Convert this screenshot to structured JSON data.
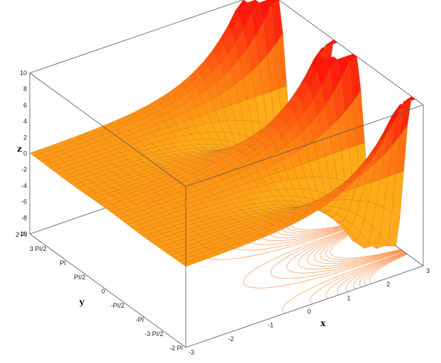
{
  "chart_data": {
    "type": "surface-3d",
    "xlabel": "x",
    "ylabel": "y",
    "zlabel": "z",
    "xlim": [
      -3,
      3
    ],
    "ylim": [
      -6.2832,
      6.2832
    ],
    "zlim": [
      -10,
      10
    ],
    "x_ticks": [
      "-3",
      "-2",
      "-1",
      "0",
      "1",
      "2",
      "3"
    ],
    "y_ticks": [
      "-2 PI",
      "-3 PI/2",
      "-PI",
      "-PI/2",
      "0",
      "PI/2",
      "PI",
      "3 PI/2",
      "2 PI"
    ],
    "z_ticks": [
      "-10",
      "-8",
      "-6",
      "-4",
      "-2",
      "0",
      "2",
      "4",
      "6",
      "8",
      "10"
    ],
    "surface": "z = exp(x) * cos(y)",
    "contours_on_floor": true,
    "colors": {
      "low": "#ffa100",
      "mid": "#ff7a10",
      "high": "#ff1a1a",
      "floor_contour": "#ff8030",
      "peak_low": "#ffee30"
    }
  }
}
